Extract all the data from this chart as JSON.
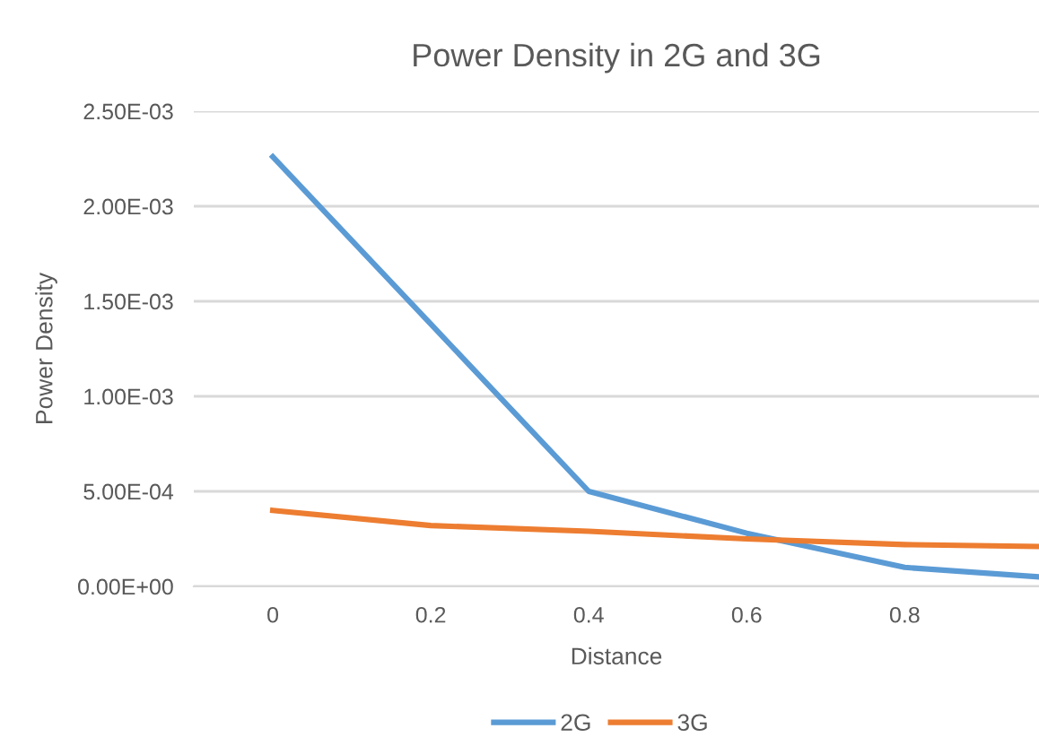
{
  "chart_data": {
    "type": "line",
    "title": "Power Density in 2G and 3G",
    "xlabel": "Distance",
    "ylabel": "Power Density",
    "x": [
      0,
      0.2,
      0.4,
      0.6,
      0.8,
      0.97
    ],
    "series": [
      {
        "name": "2G",
        "color": "#5b9bd5",
        "values": [
          0.00226,
          0.00138,
          0.0005,
          0.00028,
          0.0001,
          5e-05
        ]
      },
      {
        "name": "3G",
        "color": "#ed7d31",
        "values": [
          0.0004,
          0.00032,
          0.00029,
          0.00025,
          0.00022,
          0.00021
        ]
      }
    ],
    "xlim": [
      -0.1,
      0.97
    ],
    "xticks": [
      0,
      0.2,
      0.4,
      0.6,
      0.8
    ],
    "ylim": [
      0,
      0.0025
    ],
    "yticks": [
      {
        "value": 0,
        "label": "0.00E+00"
      },
      {
        "value": 0.0005,
        "label": "5.00E-04"
      },
      {
        "value": 0.001,
        "label": "1.00E-03"
      },
      {
        "value": 0.0015,
        "label": "1.50E-03"
      },
      {
        "value": 0.002,
        "label": "2.00E-03"
      },
      {
        "value": 0.0025,
        "label": "2.50E-03"
      }
    ],
    "grid": "y",
    "legend": "bottom",
    "marker": "none",
    "line_style": "solid"
  }
}
